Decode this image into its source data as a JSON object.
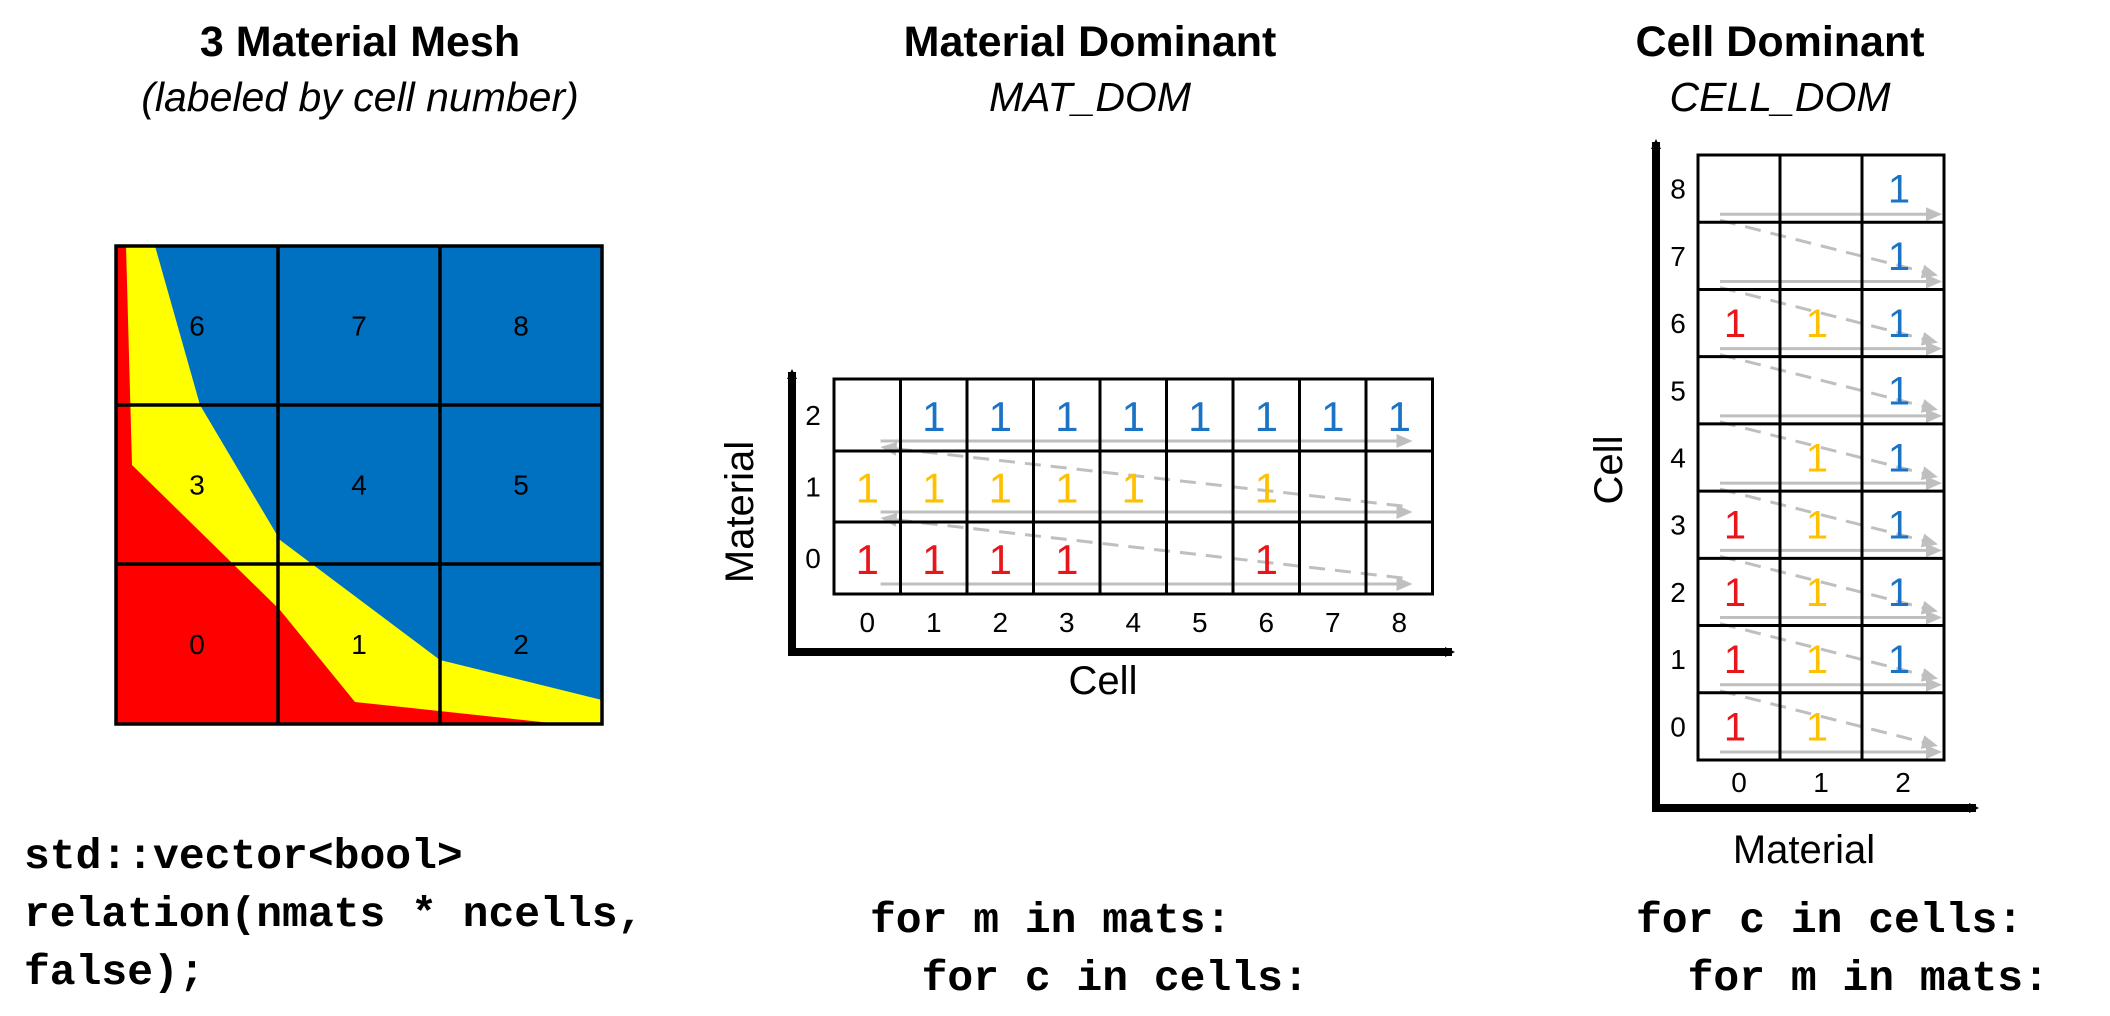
{
  "panels": {
    "mesh": {
      "title": "3 Material Mesh",
      "subtitle": "(labeled by cell number)",
      "cell_labels": [
        "0",
        "1",
        "2",
        "3",
        "4",
        "5",
        "6",
        "7",
        "8"
      ]
    },
    "mat_dom": {
      "title": "Material Dominant",
      "subtitle": "MAT_DOM",
      "y_axis_label": "Material",
      "x_axis_label": "Cell",
      "row_labels": [
        "0",
        "1",
        "2"
      ],
      "col_labels": [
        "0",
        "1",
        "2",
        "3",
        "4",
        "5",
        "6",
        "7",
        "8"
      ],
      "entry": "1",
      "grid": [
        [
          1,
          1,
          1,
          1,
          0,
          0,
          1,
          0,
          0
        ],
        [
          1,
          1,
          1,
          1,
          1,
          0,
          1,
          0,
          0
        ],
        [
          0,
          1,
          1,
          1,
          1,
          1,
          1,
          1,
          1
        ]
      ]
    },
    "cell_dom": {
      "title": "Cell Dominant",
      "subtitle": "CELL_DOM",
      "y_axis_label": "Cell",
      "x_axis_label": "Material",
      "row_labels": [
        "0",
        "1",
        "2",
        "3",
        "4",
        "5",
        "6",
        "7",
        "8"
      ],
      "col_labels": [
        "0",
        "1",
        "2"
      ],
      "entry": "1",
      "grid": [
        [
          1,
          1,
          0
        ],
        [
          1,
          1,
          1
        ],
        [
          1,
          1,
          1
        ],
        [
          1,
          1,
          1
        ],
        [
          0,
          1,
          1
        ],
        [
          0,
          0,
          1
        ],
        [
          1,
          1,
          1
        ],
        [
          0,
          0,
          1
        ],
        [
          0,
          0,
          1
        ]
      ]
    }
  },
  "code": {
    "declaration": [
      "std::vector<bool>",
      "relation(nmats * ncells,",
      "false);"
    ],
    "mat_dom_loop": [
      "for m in mats:",
      "  for c in cells:"
    ],
    "cell_dom_loop": [
      "for c in cells:",
      "  for m in mats:"
    ]
  },
  "colors": {
    "material_0": "#ff0000",
    "material_1": "#ffff00",
    "material_2": "#0070c0",
    "entry_material_0": "#e8151b",
    "entry_material_1": "#ffc000",
    "entry_material_2": "#1a73c4",
    "arrow": "#bfbfbf"
  }
}
